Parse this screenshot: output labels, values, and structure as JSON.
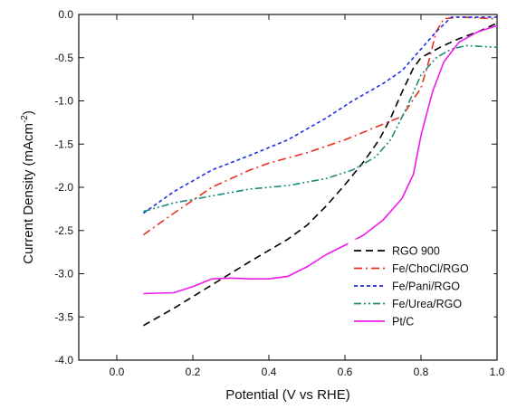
{
  "chart_data": {
    "type": "line",
    "title": "",
    "xlabel": "Potential (V vs RHE)",
    "ylabel_main": "Current Density (mAcm",
    "ylabel_sup": "-2",
    "ylabel_close": ")",
    "xlim": [
      -0.1,
      1.0
    ],
    "ylim": [
      -4.0,
      0.0
    ],
    "xticks": [
      0.0,
      0.2,
      0.4,
      0.6,
      0.8,
      1.0
    ],
    "xtick_labels": [
      "0.0",
      "0.2",
      "0.4",
      "0.6",
      "0.8",
      "1.0"
    ],
    "yticks": [
      0.0,
      -0.5,
      -1.0,
      -1.5,
      -2.0,
      -2.5,
      -3.0,
      -3.5,
      -4.0
    ],
    "ytick_labels": [
      "0.0",
      "-0.5",
      "-1.0",
      "-1.5",
      "-2.0",
      "-2.5",
      "-3.0",
      "-3.5",
      "-4.0"
    ],
    "grid": false,
    "legend_position": "bottom-right",
    "series": [
      {
        "name": "RGO 900",
        "color": "#000000",
        "dash": "dash",
        "points": [
          [
            0.07,
            -3.6
          ],
          [
            0.15,
            -3.4
          ],
          [
            0.25,
            -3.13
          ],
          [
            0.35,
            -2.86
          ],
          [
            0.45,
            -2.6
          ],
          [
            0.5,
            -2.44
          ],
          [
            0.55,
            -2.22
          ],
          [
            0.6,
            -1.97
          ],
          [
            0.65,
            -1.7
          ],
          [
            0.69,
            -1.45
          ],
          [
            0.72,
            -1.2
          ],
          [
            0.75,
            -0.9
          ],
          [
            0.78,
            -0.62
          ],
          [
            0.8,
            -0.5
          ],
          [
            0.85,
            -0.38
          ],
          [
            0.9,
            -0.28
          ],
          [
            0.95,
            -0.2
          ],
          [
            1.0,
            -0.1
          ]
        ]
      },
      {
        "name": "Fe/ChoCl/RGO",
        "color": "#e8301e",
        "dash": "dashdot",
        "points": [
          [
            0.07,
            -2.55
          ],
          [
            0.15,
            -2.3
          ],
          [
            0.25,
            -2.0
          ],
          [
            0.35,
            -1.8
          ],
          [
            0.4,
            -1.72
          ],
          [
            0.5,
            -1.6
          ],
          [
            0.6,
            -1.45
          ],
          [
            0.7,
            -1.27
          ],
          [
            0.75,
            -1.18
          ],
          [
            0.8,
            -0.85
          ],
          [
            0.82,
            -0.55
          ],
          [
            0.84,
            -0.2
          ],
          [
            0.86,
            -0.05
          ],
          [
            0.9,
            -0.03
          ],
          [
            1.0,
            -0.05
          ]
        ]
      },
      {
        "name": "Fe/Pani/RGO",
        "color": "#1f2fe6",
        "dash": "dotted",
        "points": [
          [
            0.07,
            -2.3
          ],
          [
            0.15,
            -2.05
          ],
          [
            0.25,
            -1.8
          ],
          [
            0.35,
            -1.63
          ],
          [
            0.45,
            -1.45
          ],
          [
            0.55,
            -1.2
          ],
          [
            0.62,
            -1.0
          ],
          [
            0.7,
            -0.8
          ],
          [
            0.75,
            -0.65
          ],
          [
            0.8,
            -0.4
          ],
          [
            0.84,
            -0.2
          ],
          [
            0.88,
            -0.03
          ],
          [
            1.0,
            -0.03
          ]
        ]
      },
      {
        "name": "Fe/Urea/RGO",
        "color": "#1a8a7a",
        "dash": "dashdotdot",
        "points": [
          [
            0.07,
            -2.28
          ],
          [
            0.15,
            -2.18
          ],
          [
            0.25,
            -2.1
          ],
          [
            0.35,
            -2.02
          ],
          [
            0.45,
            -1.98
          ],
          [
            0.55,
            -1.9
          ],
          [
            0.62,
            -1.8
          ],
          [
            0.68,
            -1.65
          ],
          [
            0.72,
            -1.45
          ],
          [
            0.76,
            -1.1
          ],
          [
            0.8,
            -0.7
          ],
          [
            0.84,
            -0.5
          ],
          [
            0.88,
            -0.4
          ],
          [
            0.92,
            -0.36
          ],
          [
            1.0,
            -0.38
          ]
        ]
      },
      {
        "name": "Pt/C",
        "color": "#ee1bee",
        "dash": "solid",
        "points": [
          [
            0.07,
            -3.23
          ],
          [
            0.15,
            -3.22
          ],
          [
            0.2,
            -3.15
          ],
          [
            0.25,
            -3.06
          ],
          [
            0.3,
            -3.05
          ],
          [
            0.35,
            -3.06
          ],
          [
            0.4,
            -3.06
          ],
          [
            0.45,
            -3.03
          ],
          [
            0.5,
            -2.92
          ],
          [
            0.55,
            -2.78
          ],
          [
            0.6,
            -2.67
          ],
          [
            0.65,
            -2.55
          ],
          [
            0.7,
            -2.38
          ],
          [
            0.75,
            -2.13
          ],
          [
            0.78,
            -1.85
          ],
          [
            0.8,
            -1.4
          ],
          [
            0.83,
            -0.9
          ],
          [
            0.86,
            -0.55
          ],
          [
            0.9,
            -0.32
          ],
          [
            0.95,
            -0.2
          ],
          [
            1.0,
            -0.13
          ]
        ]
      }
    ]
  }
}
